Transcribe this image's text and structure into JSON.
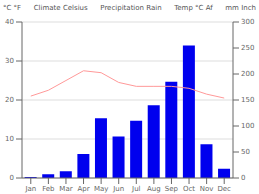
{
  "chart_data": {
    "type": "combo",
    "categories": [
      "Jan",
      "Feb",
      "Mar",
      "Apr",
      "May",
      "Jun",
      "Jul",
      "Aug",
      "Sep",
      "Oct",
      "Nov",
      "Dec"
    ],
    "series": [
      {
        "type": "bar",
        "axis": "y2",
        "color": "#0000EE",
        "values": [
          2,
          7,
          13,
          46,
          115,
          80,
          110,
          140,
          185,
          255,
          65,
          18
        ]
      },
      {
        "type": "line",
        "axis": "y",
        "color": "#FF9999",
        "values": [
          21.0,
          22.5,
          25.0,
          27.5,
          27.0,
          24.5,
          23.5,
          23.5,
          23.5,
          23.0,
          21.5,
          20.5
        ]
      }
    ],
    "ylim": [
      0,
      40
    ],
    "yticks": [
      0,
      10,
      20,
      30,
      40
    ],
    "y2lim": [
      0,
      300
    ],
    "y2ticks": [
      0,
      50,
      100,
      150,
      200,
      250,
      300
    ],
    "grid": true,
    "annotations": [
      "°C  °F",
      "Climate  Celsius",
      "Precipitation  Rain",
      "Temp °C Af",
      "mm  Inch"
    ]
  }
}
